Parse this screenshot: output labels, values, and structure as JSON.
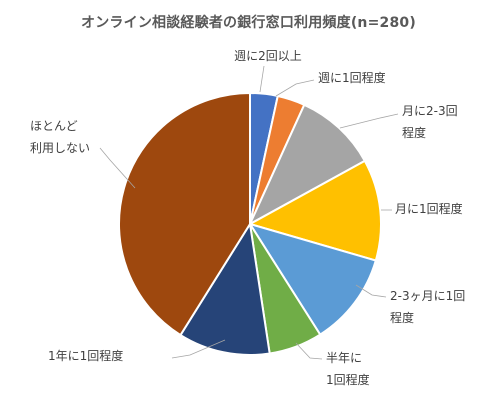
{
  "chart_data": {
    "type": "pie",
    "title": "オンライン相談経験者の銀行窓口利用頻度(n=280)",
    "categories": [
      "週に2回以上",
      "週に1回程度",
      "月に2-3回程度",
      "月に1回程度",
      "2-3ヶ月に1回程度",
      "半年に1回程度",
      "1年に1回程度",
      "ほとんど利用しない"
    ],
    "values": [
      3.4,
      3.4,
      10.2,
      12.5,
      11.5,
      6.6,
      11.3,
      41.1
    ],
    "unit": "%",
    "colors": [
      "#4472C4",
      "#ED7D31",
      "#A5A5A5",
      "#FFC000",
      "#5B9BD5",
      "#70AD47",
      "#264478",
      "#9E480E"
    ],
    "label_lines": [
      [
        "週に2回以上"
      ],
      [
        "週に1回程度"
      ],
      [
        "月に2-3回",
        "程度"
      ],
      [
        "月に1回程度"
      ],
      [
        "2-3ヶ月に1回",
        "程度"
      ],
      [
        "半年に",
        "1回程度"
      ],
      [
        "1年に1回程度"
      ],
      [
        "ほとんど",
        "利用しない"
      ]
    ]
  }
}
